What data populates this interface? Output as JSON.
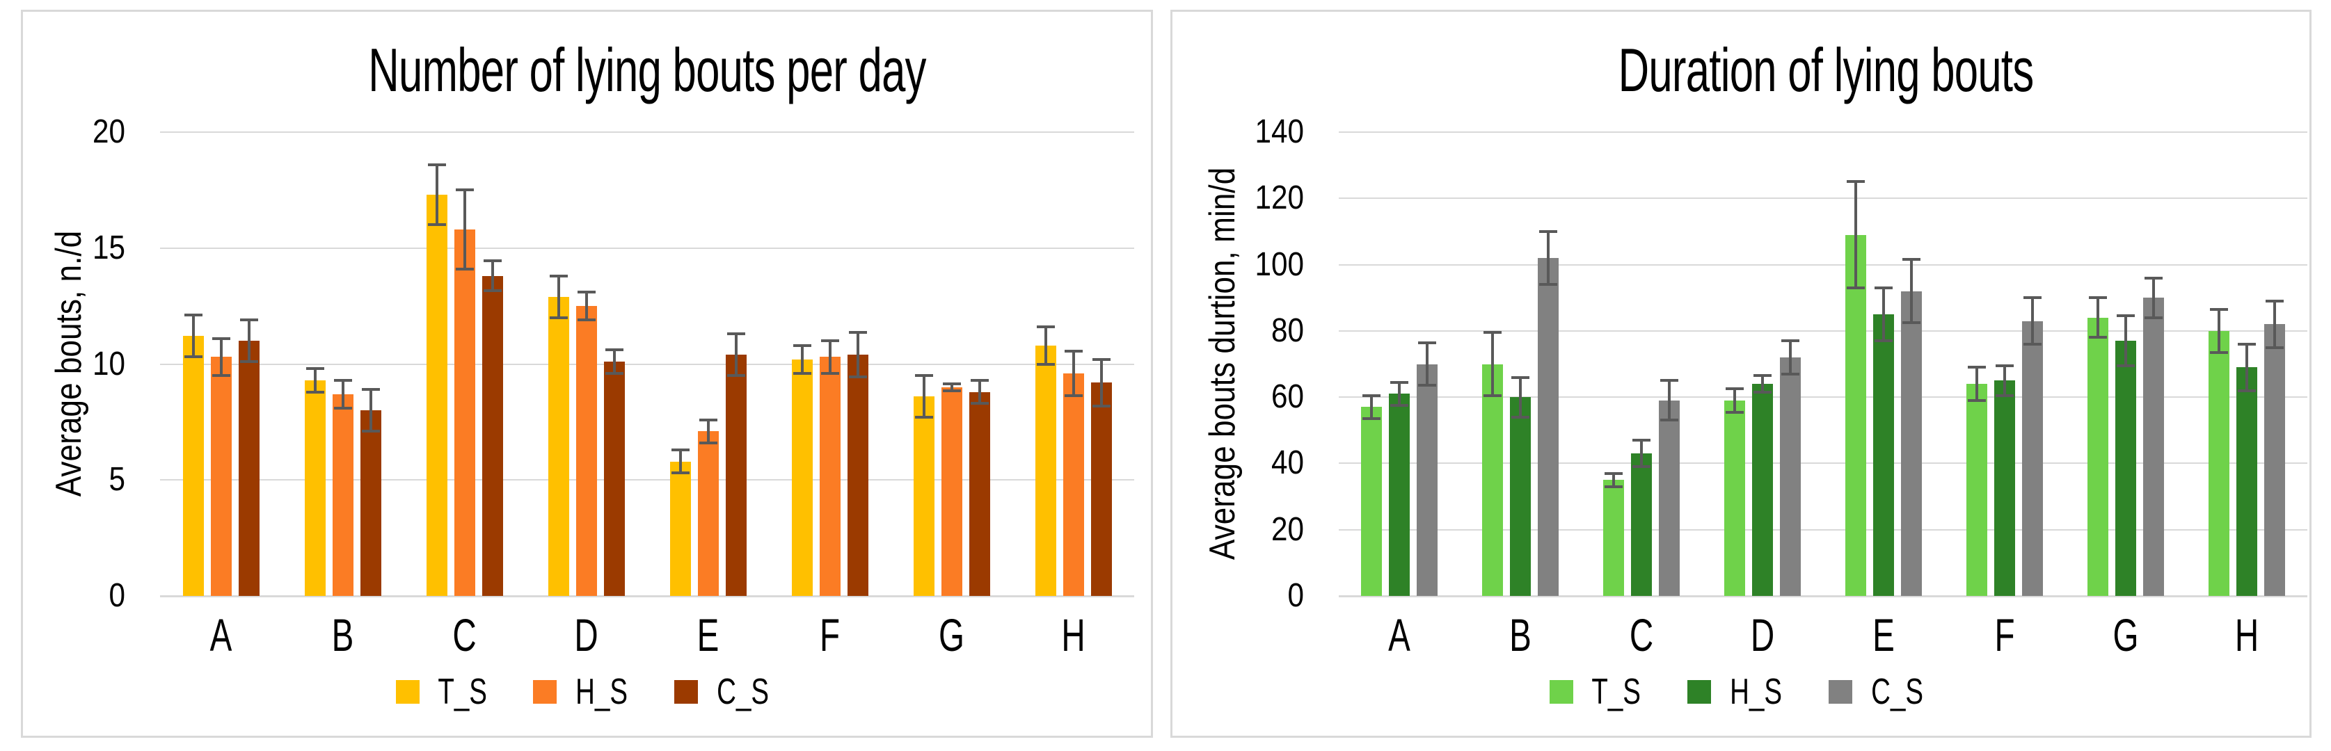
{
  "colors": {
    "background": "#FFFFFF",
    "panel_border": "#D9D9D9",
    "gridline": "#D9D9D9",
    "axis_line": "#D9D9D9",
    "error_bar": "#595959",
    "text": "#000000"
  },
  "chart_data": [
    {
      "type": "bar",
      "title": "Number of lying bouts per day",
      "ylabel": "Average bouts, n./d",
      "xlabel": "",
      "categories": [
        "A",
        "B",
        "C",
        "D",
        "E",
        "F",
        "G",
        "H"
      ],
      "ylim": [
        0,
        20
      ],
      "ytick_step": 5,
      "yticks": [
        0,
        5,
        10,
        15,
        20
      ],
      "grid": true,
      "legend_position": "bottom",
      "error_bars": true,
      "series": [
        {
          "name": "T_S",
          "color": "#FFC000",
          "values": [
            11.2,
            9.3,
            17.3,
            12.9,
            5.8,
            10.2,
            8.6,
            10.8
          ],
          "errors": [
            0.9,
            0.5,
            1.3,
            0.9,
            0.5,
            0.6,
            0.9,
            0.8
          ]
        },
        {
          "name": "H_S",
          "color": "#FB7C24",
          "values": [
            10.3,
            8.7,
            15.8,
            12.5,
            7.1,
            10.3,
            9.0,
            9.6
          ],
          "errors": [
            0.8,
            0.6,
            1.7,
            0.6,
            0.5,
            0.7,
            0.15,
            0.95
          ]
        },
        {
          "name": "C_S",
          "color": "#9B3A00",
          "values": [
            11.0,
            8.0,
            13.8,
            10.1,
            10.4,
            10.4,
            8.8,
            9.2
          ],
          "errors": [
            0.9,
            0.9,
            0.65,
            0.5,
            0.9,
            0.95,
            0.5,
            1.0
          ]
        }
      ]
    },
    {
      "type": "bar",
      "title": "Duration of lying bouts",
      "ylabel": "Average bouts durtion, min/d",
      "xlabel": "",
      "categories": [
        "A",
        "B",
        "C",
        "D",
        "E",
        "F",
        "G",
        "H"
      ],
      "ylim": [
        0,
        140
      ],
      "ytick_step": 20,
      "yticks": [
        0,
        20,
        40,
        60,
        80,
        100,
        120,
        140
      ],
      "grid": true,
      "legend_position": "bottom",
      "error_bars": true,
      "series": [
        {
          "name": "T_S",
          "color": "#6FD24A",
          "values": [
            57,
            70,
            35,
            59,
            109,
            64,
            84,
            80
          ],
          "errors": [
            3.5,
            9.5,
            2,
            3.5,
            16,
            5,
            6,
            6.5
          ]
        },
        {
          "name": "H_S",
          "color": "#2E8227",
          "values": [
            61,
            60,
            43,
            64,
            85,
            65,
            77,
            69
          ],
          "errors": [
            3.5,
            6,
            4,
            2.5,
            8,
            4.5,
            7.5,
            7
          ]
        },
        {
          "name": "C_S",
          "color": "#818181",
          "values": [
            70,
            102,
            59,
            72,
            92,
            83,
            90,
            82
          ],
          "errors": [
            6.5,
            8,
            6,
            5,
            9.5,
            7,
            6,
            7
          ]
        }
      ]
    }
  ]
}
